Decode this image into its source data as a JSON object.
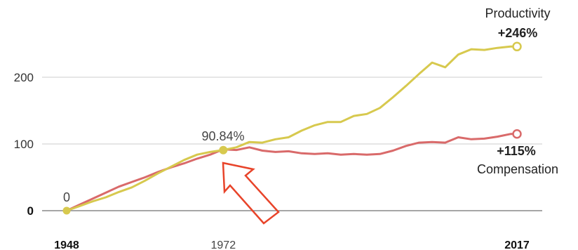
{
  "chart_data": {
    "type": "line",
    "title": "",
    "xlabel": "",
    "ylabel": "",
    "xlim": [
      1948,
      2017
    ],
    "ylim": [
      0,
      250
    ],
    "x_ticks": [
      {
        "value": 1948,
        "label": "1948",
        "bold": true
      },
      {
        "value": 1972,
        "label": "1972",
        "bold": false
      },
      {
        "value": 2017,
        "label": "2017",
        "bold": true
      }
    ],
    "y_ticks": [
      {
        "value": 0,
        "label": "0",
        "bold": true
      },
      {
        "value": 100,
        "label": "100",
        "bold": false
      },
      {
        "value": 200,
        "label": "200",
        "bold": false
      }
    ],
    "grid": "horizontal",
    "series": [
      {
        "name": "Productivity",
        "end_label": "+246%",
        "color": "#d7c94e",
        "x": [
          1948,
          1950,
          1952,
          1954,
          1956,
          1958,
          1960,
          1962,
          1964,
          1966,
          1968,
          1970,
          1972,
          1974,
          1976,
          1978,
          1980,
          1982,
          1984,
          1986,
          1988,
          1990,
          1992,
          1994,
          1996,
          1998,
          2000,
          2002,
          2004,
          2006,
          2008,
          2010,
          2012,
          2014,
          2016,
          2017
        ],
        "values": [
          0,
          7,
          14,
          20,
          28,
          35,
          45,
          56,
          66,
          76,
          84,
          88,
          91,
          95,
          103,
          102,
          107,
          110,
          120,
          128,
          133,
          133,
          142,
          145,
          154,
          170,
          187,
          205,
          222,
          215,
          234,
          242,
          241,
          244,
          246,
          246
        ]
      },
      {
        "name": "Compensation",
        "end_label": "+115%",
        "color": "#d96a6a",
        "x": [
          1948,
          1950,
          1952,
          1954,
          1956,
          1958,
          1960,
          1962,
          1964,
          1966,
          1968,
          1970,
          1972,
          1974,
          1976,
          1978,
          1980,
          1982,
          1984,
          1986,
          1988,
          1990,
          1992,
          1994,
          1996,
          1998,
          2000,
          2002,
          2004,
          2006,
          2008,
          2010,
          2012,
          2014,
          2016,
          2017
        ],
        "values": [
          0,
          9,
          18,
          27,
          36,
          43,
          50,
          58,
          65,
          71,
          78,
          84,
          92,
          91,
          95,
          90,
          88,
          89,
          86,
          85,
          86,
          84,
          85,
          84,
          85,
          90,
          97,
          102,
          103,
          102,
          110,
          107,
          108,
          111,
          115,
          115
        ]
      }
    ],
    "annotations": [
      {
        "text": "0",
        "x": 1948,
        "y": 0
      },
      {
        "text": "90.84%",
        "x": 1972,
        "y": 90.84
      }
    ],
    "arrow": {
      "color": "#e8442a",
      "points_to_year": 1972
    }
  }
}
